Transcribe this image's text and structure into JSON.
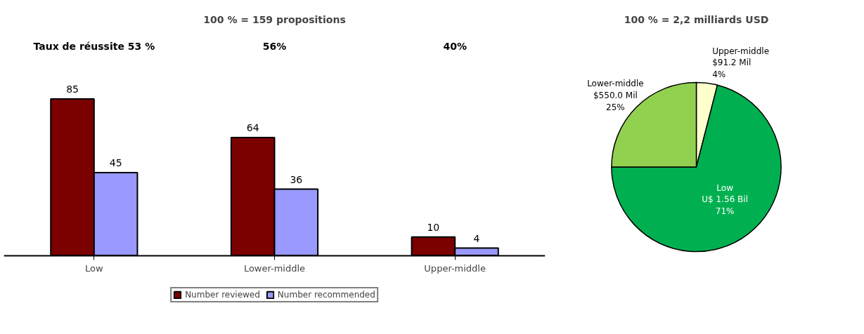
{
  "chart_data": [
    {
      "type": "bar",
      "title": "100 % = 159 propositions",
      "categories": [
        "Low",
        "Lower-middle",
        "Upper-middle"
      ],
      "series": [
        {
          "name": "Number reviewed",
          "color": "#7b0000",
          "values": [
            85,
            64,
            10
          ]
        },
        {
          "name": "Number recommended",
          "color": "#9999ff",
          "values": [
            45,
            36,
            4
          ]
        }
      ],
      "data_labels": true,
      "legend": "bottom",
      "annotations": [
        "Taux de réussite 53 %",
        "56%",
        "40%"
      ]
    },
    {
      "type": "pie",
      "title": "100 % = 2,2 milliards USD",
      "categories": [
        "Upper-middle",
        "Low",
        "Lower-middle"
      ],
      "values": [
        4,
        71,
        25
      ],
      "colors": [
        "#ffffcc",
        "#00b050",
        "#92d050"
      ],
      "annotations": [
        {
          "text": "$91.2 Mil",
          "x": "Upper-middle"
        },
        {
          "text": "U$ 1.56 Bil",
          "x": "Low"
        },
        {
          "text": "$550.0 Mil",
          "x": "Lower-middle"
        }
      ],
      "value_labels": [
        "4%",
        "71%",
        "25%"
      ]
    }
  ]
}
